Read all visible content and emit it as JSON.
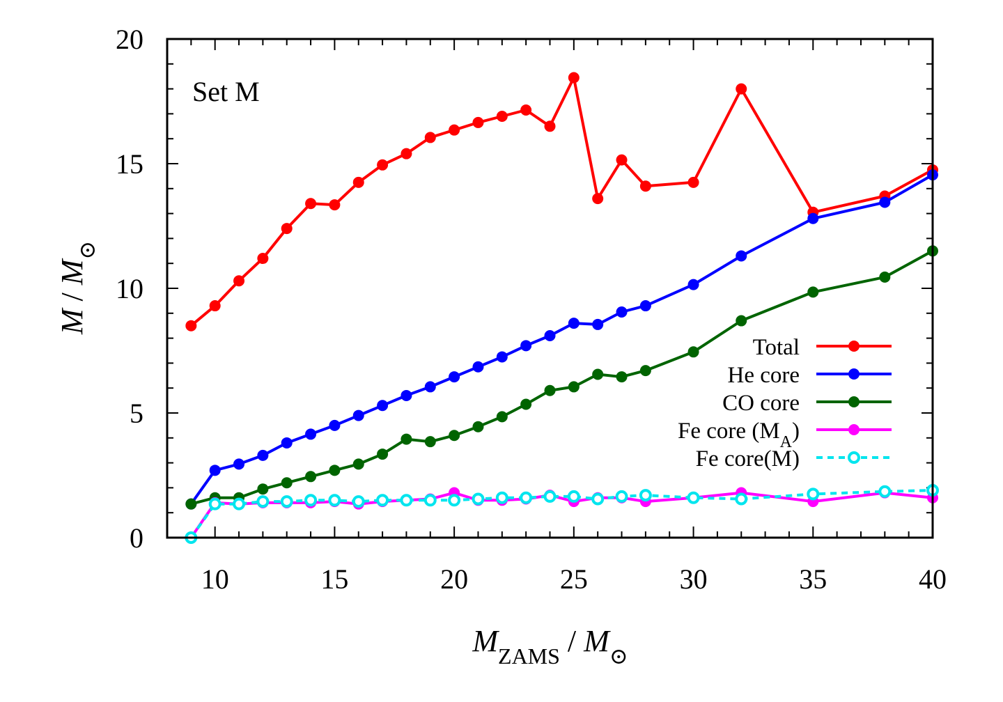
{
  "chart_data": {
    "type": "line",
    "annotation": "Set M",
    "xlabel": {
      "main": "M",
      "sub": "ZAMS",
      "sep": " / ",
      "main2": "M",
      "sun": "⊙"
    },
    "ylabel": {
      "main": "M",
      "sep": " / ",
      "main2": "M",
      "sun": "⊙"
    },
    "xlim": [
      8,
      40
    ],
    "ylim": [
      0,
      20
    ],
    "xticks": [
      10,
      15,
      20,
      25,
      30,
      35,
      40
    ],
    "yticks": [
      0,
      5,
      10,
      15,
      20
    ],
    "legend_position": "bottom-right",
    "x": [
      9,
      10,
      11,
      12,
      13,
      14,
      15,
      16,
      17,
      18,
      19,
      20,
      21,
      22,
      23,
      24,
      25,
      26,
      27,
      28,
      30,
      32,
      35,
      38,
      40
    ],
    "series": [
      {
        "name": "Total",
        "color": "#ff0000",
        "dashed": false,
        "marker": "filled",
        "values": [
          8.5,
          9.3,
          10.3,
          11.2,
          12.4,
          13.4,
          13.35,
          14.25,
          14.95,
          15.4,
          16.05,
          16.35,
          16.65,
          16.9,
          17.15,
          16.5,
          18.45,
          13.6,
          15.15,
          14.1,
          14.25,
          18.0,
          13.05,
          13.7,
          14.75
        ]
      },
      {
        "name": "He core",
        "color": "#0000ff",
        "dashed": false,
        "marker": "filled",
        "values": [
          1.35,
          2.7,
          2.95,
          3.3,
          3.8,
          4.15,
          4.5,
          4.9,
          5.3,
          5.7,
          6.05,
          6.45,
          6.85,
          7.25,
          7.7,
          8.1,
          8.6,
          8.55,
          9.05,
          9.3,
          10.15,
          11.3,
          12.8,
          13.45,
          14.55
        ]
      },
      {
        "name": "CO core",
        "color": "#006400",
        "dashed": false,
        "marker": "filled",
        "values": [
          1.35,
          1.6,
          1.6,
          1.95,
          2.2,
          2.45,
          2.7,
          2.95,
          3.35,
          3.95,
          3.85,
          4.1,
          4.45,
          4.85,
          5.35,
          5.9,
          6.05,
          6.55,
          6.45,
          6.7,
          7.45,
          8.7,
          9.85,
          10.45,
          11.5
        ]
      },
      {
        "name": "Fe core (M",
        "sub": "A",
        "suffix": ")",
        "color": "#ff00ff",
        "dashed": false,
        "marker": "filled",
        "values": [
          0.0,
          1.4,
          1.35,
          1.4,
          1.4,
          1.4,
          1.45,
          1.35,
          1.45,
          1.5,
          1.55,
          1.8,
          1.5,
          1.5,
          1.55,
          1.7,
          1.45,
          1.6,
          1.6,
          1.45,
          1.6,
          1.8,
          1.45,
          1.8,
          1.6
        ]
      },
      {
        "name": "Fe core(M)",
        "color": "#00e5ee",
        "dashed": true,
        "marker": "ring",
        "values": [
          0.0,
          1.35,
          1.35,
          1.45,
          1.45,
          1.5,
          1.5,
          1.45,
          1.5,
          1.5,
          1.5,
          1.5,
          1.55,
          1.6,
          1.6,
          1.65,
          1.65,
          1.55,
          1.65,
          1.7,
          1.6,
          1.55,
          1.75,
          1.85,
          1.9
        ]
      }
    ]
  }
}
